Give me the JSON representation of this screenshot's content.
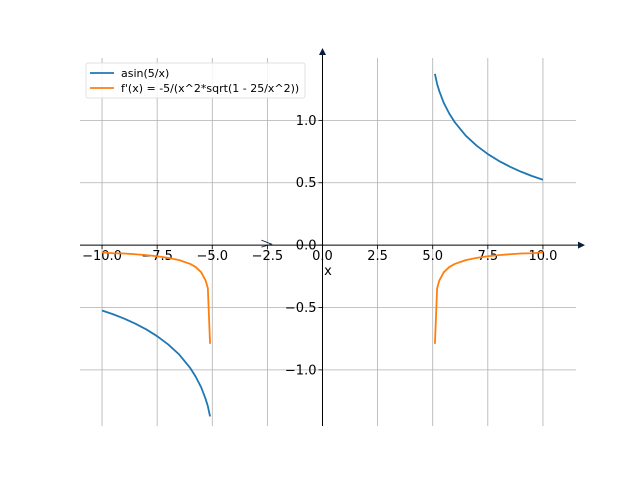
{
  "chart_data": {
    "type": "line",
    "xlabel": "x",
    "ylabel": "",
    "xlim": [
      -11,
      11.5
    ],
    "ylim": [
      -1.45,
      1.5
    ],
    "grid": true,
    "legend_position": "top-left",
    "x_ticks": [
      -10.0,
      -7.5,
      -5.0,
      -2.5,
      0.0,
      2.5,
      5.0,
      7.5,
      10.0
    ],
    "x_tick_labels": [
      "−10.0",
      "−7.5",
      "−5.0",
      "−2.5",
      "0.0",
      "2.5",
      "5.0",
      "7.5",
      "10.0"
    ],
    "y_ticks": [
      -1.0,
      -0.5,
      0.0,
      0.5,
      1.0
    ],
    "y_tick_labels": [
      "−1.0",
      "−0.5",
      "0.0",
      "0.5",
      "1.0"
    ],
    "series": [
      {
        "name": "asin(5/x)",
        "color": "#1f77b4",
        "segments": [
          {
            "x": [
              -10,
              -9.5,
              -9,
              -8.5,
              -8,
              -7.5,
              -7,
              -6.5,
              -6,
              -5.75,
              -5.5,
              -5.3,
              -5.2,
              -5.1
            ],
            "y": [
              -0.524,
              -0.554,
              -0.589,
              -0.629,
              -0.675,
              -0.73,
              -0.796,
              -0.877,
              -0.985,
              -1.055,
              -1.141,
              -1.234,
              -1.292,
              -1.373
            ]
          },
          {
            "x": [
              5.1,
              5.2,
              5.3,
              5.5,
              5.75,
              6,
              6.5,
              7,
              7.5,
              8,
              8.5,
              9,
              9.5,
              10
            ],
            "y": [
              1.373,
              1.292,
              1.234,
              1.141,
              1.055,
              0.985,
              0.877,
              0.796,
              0.73,
              0.675,
              0.629,
              0.589,
              0.554,
              0.524
            ]
          }
        ]
      },
      {
        "name": "f'(x) = -5/(x^2*sqrt(1 - 25/x^2))",
        "color": "#ff7f0e",
        "segments": [
          {
            "x": [
              -10,
              -9.5,
              -9,
              -8.5,
              -8,
              -7.5,
              -7,
              -6.5,
              -6,
              -5.75,
              -5.5,
              -5.3,
              -5.2,
              -5.1
            ],
            "y": [
              -0.058,
              -0.065,
              -0.067,
              -0.073,
              -0.08,
              -0.089,
              -0.102,
              -0.12,
              -0.151,
              -0.176,
              -0.218,
              -0.284,
              -0.346,
              -0.791
            ]
          },
          {
            "x": [
              5.1,
              5.2,
              5.3,
              5.5,
              5.75,
              6,
              6.5,
              7,
              7.5,
              8,
              8.5,
              9,
              9.5,
              10
            ],
            "y": [
              -0.791,
              -0.346,
              -0.284,
              -0.218,
              -0.176,
              -0.151,
              -0.12,
              -0.102,
              -0.089,
              -0.08,
              -0.073,
              -0.067,
              -0.065,
              -0.058
            ]
          }
        ]
      }
    ]
  }
}
